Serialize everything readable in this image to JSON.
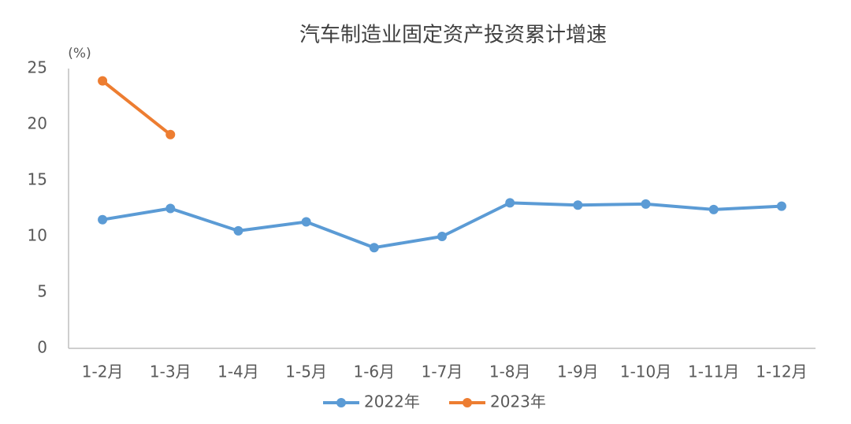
{
  "chart_data": {
    "type": "line",
    "title": "汽车制造业固定资产投资累计增速",
    "y_label": "(%)",
    "categories": [
      "1-2月",
      "1-3月",
      "1-4月",
      "1-5月",
      "1-6月",
      "1-7月",
      "1-8月",
      "1-9月",
      "1-10月",
      "1-11月",
      "1-12月"
    ],
    "series": [
      {
        "name": "2022年",
        "color": "#5b9bd5",
        "values": [
          11.5,
          12.5,
          10.5,
          11.3,
          9.0,
          10.0,
          13.0,
          12.8,
          12.9,
          12.4,
          12.7
        ]
      },
      {
        "name": "2023年",
        "color": "#ed7d31",
        "values": [
          23.9,
          19.1,
          null,
          null,
          null,
          null,
          null,
          null,
          null,
          null,
          null
        ]
      }
    ],
    "ylim": [
      0,
      25
    ],
    "yticks": [
      0,
      5,
      10,
      15,
      20,
      25
    ],
    "grid": false,
    "legend": "bottom"
  }
}
